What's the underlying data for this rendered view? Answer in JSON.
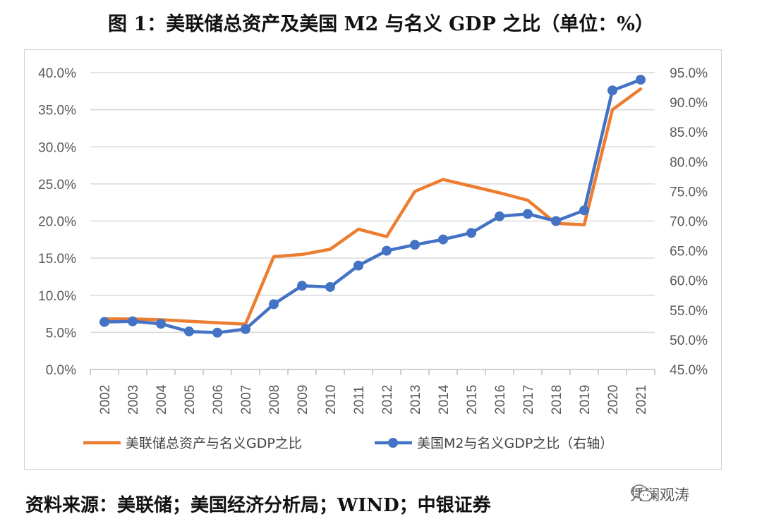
{
  "title": "图 1：美联储总资产及美国 M2 与名义 GDP 之比（单位：%）",
  "source_note": "资料来源：美联储；美国经济分析局；WIND；中银证券",
  "watermark": "凭澜观涛",
  "colors": {
    "series1": "#ED7D31",
    "series2": "#4472C4",
    "grid": "#d9d9d9",
    "axis": "#bfbfbf"
  },
  "chart_data": {
    "type": "line",
    "x": [
      "2002",
      "2003",
      "2004",
      "2005",
      "2006",
      "2007",
      "2008",
      "2009",
      "2010",
      "2011",
      "2012",
      "2013",
      "2014",
      "2015",
      "2016",
      "2017",
      "2018",
      "2019",
      "2020",
      "2021"
    ],
    "y_left": {
      "ylim": [
        0,
        40
      ],
      "ticks": [
        "0.0%",
        "5.0%",
        "10.0%",
        "15.0%",
        "20.0%",
        "25.0%",
        "30.0%",
        "35.0%",
        "40.0%"
      ]
    },
    "y_right": {
      "ylim": [
        45,
        95
      ],
      "ticks": [
        "45.0%",
        "50.0%",
        "55.0%",
        "60.0%",
        "65.0%",
        "70.0%",
        "75.0%",
        "80.0%",
        "85.0%",
        "90.0%",
        "95.0%"
      ]
    },
    "grid": true,
    "legend_position": "bottom",
    "series": [
      {
        "name": "美联储总资产与名义GDP之比",
        "axis": "left",
        "marker": "none",
        "values": [
          6.8,
          6.8,
          6.7,
          6.5,
          6.3,
          6.1,
          15.2,
          15.5,
          16.2,
          18.9,
          17.9,
          24.0,
          25.6,
          24.7,
          23.8,
          22.8,
          19.7,
          19.5,
          35.0,
          37.8
        ]
      },
      {
        "name": "美国M2与名义GDP之比（右轴）",
        "axis": "right",
        "marker": "circle",
        "values": [
          53.0,
          53.1,
          52.7,
          51.4,
          51.2,
          51.8,
          56.0,
          59.1,
          58.9,
          62.5,
          65.0,
          66.0,
          66.9,
          68.0,
          70.8,
          71.2,
          70.0,
          71.8,
          92.0,
          93.8
        ]
      }
    ]
  }
}
